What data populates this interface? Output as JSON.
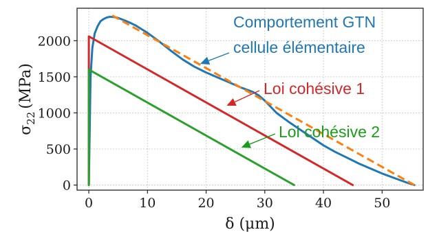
{
  "chart_data": {
    "type": "line",
    "xlabel": "δ (μm)",
    "ylabel": "σ22 (MPa)",
    "xlim": [
      -2,
      57
    ],
    "ylim": [
      -70,
      2450
    ],
    "xticks": [
      0,
      10,
      20,
      30,
      40,
      50
    ],
    "yticks": [
      0,
      500,
      1000,
      1500,
      2000
    ],
    "grid": true,
    "series": [
      {
        "name": "Comportement GTN cellule élémentaire",
        "color": "#1f77b4",
        "style": "solid",
        "x": [
          0,
          0.3,
          0.6,
          1.0,
          1.5,
          2.0,
          2.5,
          3.0,
          3.5,
          4.0,
          4.5,
          5,
          6,
          7,
          8,
          9,
          10,
          12,
          14,
          16,
          18,
          20,
          22,
          24,
          26,
          28,
          29,
          30,
          32,
          34,
          36,
          38,
          40,
          42,
          44,
          46,
          48,
          50,
          52,
          54,
          55.5
        ],
        "y": [
          0,
          1500,
          1900,
          2100,
          2200,
          2270,
          2300,
          2320,
          2330,
          2330,
          2325,
          2315,
          2285,
          2250,
          2210,
          2160,
          2110,
          1990,
          1860,
          1740,
          1640,
          1560,
          1490,
          1420,
          1350,
          1290,
          1240,
          1170,
          1000,
          880,
          770,
          660,
          550,
          460,
          380,
          300,
          230,
          160,
          100,
          40,
          0
        ]
      },
      {
        "name": "",
        "color": "#ff7f0e",
        "style": "dashed",
        "x": [
          4,
          55.5
        ],
        "y": [
          2350,
          0
        ]
      },
      {
        "name": "Loi cohésive 1",
        "color": "#d62728",
        "style": "solid",
        "x": [
          0,
          0.01,
          45
        ],
        "y": [
          0,
          2060,
          0
        ]
      },
      {
        "name": "Loi cohésive 2",
        "color": "#2ca02c",
        "style": "solid",
        "x": [
          0,
          0.02,
          35
        ],
        "y": [
          0,
          1600,
          0
        ]
      }
    ],
    "annotations": [
      {
        "text_line1": "Comportement GTN",
        "text_line2": "cellule élémentaire",
        "color": "#1f77b4",
        "arrow_to": [
          19,
          1680
        ]
      },
      {
        "text_line1": "Loi cohésive 1",
        "color": "#d62728",
        "arrow_to": [
          23.5,
          1100
        ]
      },
      {
        "text_line1": "Loi cohésive 2",
        "color": "#1a9c1a",
        "arrow_to": [
          26,
          520
        ]
      }
    ]
  }
}
